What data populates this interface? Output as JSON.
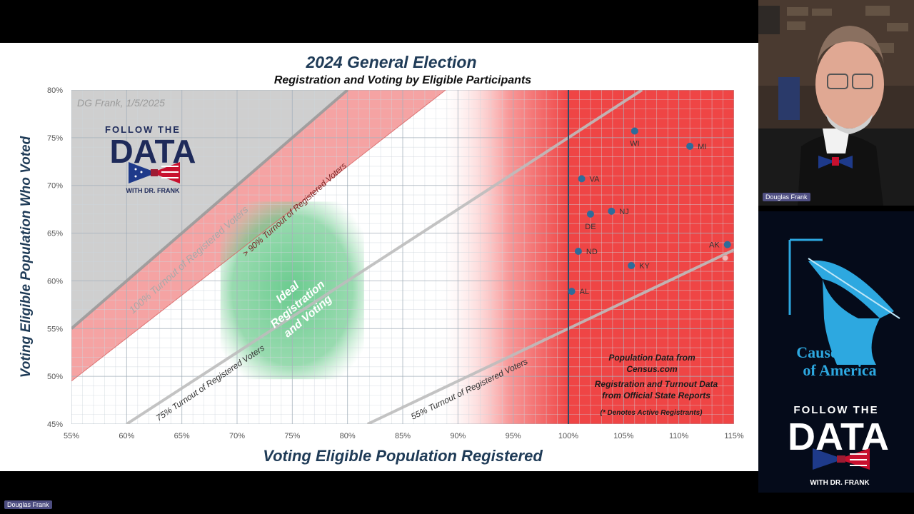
{
  "slide": {
    "title": "2024 General Election",
    "subtitle": "Registration and Voting by Eligible Participants",
    "credit": "DG Frank, 1/5/2025",
    "logo": {
      "line1": "FOLLOW THE",
      "line2": "DATA",
      "line3": "WITH DR. FRANK"
    },
    "band_labels": {
      "t100": "100% Turnout of Registered Voters",
      "t90": "> 90% Turnout of Registered Voters",
      "t75": "75% Turnout of Registered Voters",
      "t55": "55% Turnout of Registered Voters"
    },
    "ideal_label": [
      "Ideal",
      "Registration",
      "and Voting"
    ],
    "notes": [
      "Population Data from",
      "Census.com",
      "Registration and Turnout Data",
      "from Official State Reports",
      "(* Denotes Active Registrants)"
    ]
  },
  "chart_data": {
    "type": "scatter",
    "title": "2024 General Election",
    "subtitle": "Registration and Voting by Eligible Participants",
    "xlabel": "Voting Eligible Population Registered",
    "ylabel": "Voting Eligible Population Who Voted",
    "xlim": [
      55,
      115
    ],
    "ylim": [
      45,
      80
    ],
    "x_ticks": [
      "55%",
      "60%",
      "65%",
      "70%",
      "75%",
      "80%",
      "85%",
      "90%",
      "95%",
      "100%",
      "105%",
      "110%",
      "115%"
    ],
    "y_ticks": [
      "45%",
      "50%",
      "55%",
      "60%",
      "65%",
      "70%",
      "75%",
      "80%"
    ],
    "grid": true,
    "reference_line_x": 100,
    "turnout_lines": [
      100,
      90,
      75,
      55
    ],
    "point_color": "#2e6c9a",
    "points": [
      {
        "label": "WI",
        "x": 106.0,
        "y": 75.7
      },
      {
        "label": "MI",
        "x": 111.0,
        "y": 74.1
      },
      {
        "label": "VA",
        "x": 101.2,
        "y": 70.7
      },
      {
        "label": "DE",
        "x": 102.0,
        "y": 67.0
      },
      {
        "label": "NJ",
        "x": 103.9,
        "y": 67.3
      },
      {
        "label": "AK",
        "x": 114.4,
        "y": 63.8
      },
      {
        "label": "ND",
        "x": 100.9,
        "y": 63.1
      },
      {
        "label": "KY",
        "x": 105.7,
        "y": 61.6
      },
      {
        "label": "AL",
        "x": 100.3,
        "y": 58.9
      }
    ],
    "marked_point": {
      "label": "",
      "x": 114.2,
      "y": 62.4
    }
  },
  "webcam": {
    "name": "Douglas Frank"
  },
  "footer": {
    "name": "Douglas Frank"
  },
  "side_brand": {
    "cause": [
      "Cause",
      "of America"
    ],
    "logo": {
      "line1": "FOLLOW THE",
      "line2": "DATA",
      "line3": "WITH DR. FRANK"
    }
  }
}
